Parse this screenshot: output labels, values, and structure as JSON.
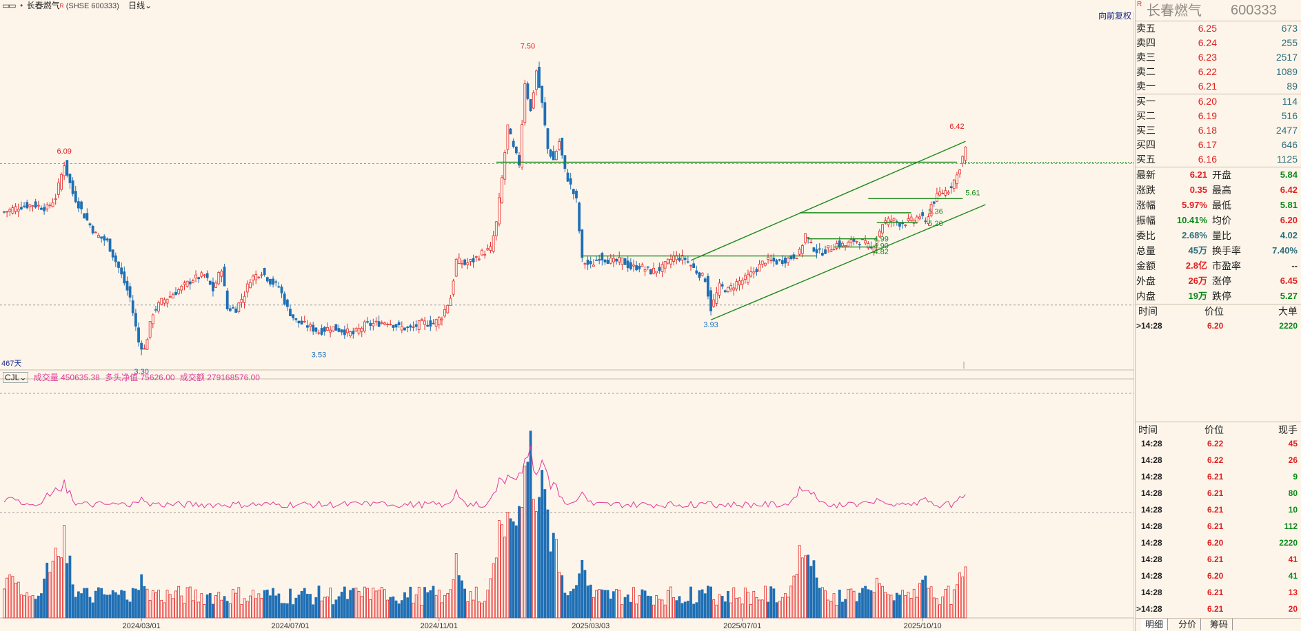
{
  "topbar": {
    "menu_icon": "grid-icon",
    "name": "长春燃气",
    "r_mark": "R",
    "market_code": "(SHSE 600333)",
    "period": "日线"
  },
  "chart_data": {
    "type": "candlestick",
    "x_ticks": [
      "2024/03/01",
      "2024/07/01",
      "2024/11/01",
      "2025/03/03",
      "2025/07/01",
      "2025/10/10"
    ],
    "price_range": [
      3.2,
      7.7
    ],
    "restore_mode": "向前复权",
    "day_count": "467天",
    "price_annotations": [
      {
        "label": "7.50",
        "i": 183,
        "v": 7.5,
        "side": "high"
      },
      {
        "label": "6.09",
        "i": 21,
        "v": 6.09,
        "side": "high"
      },
      {
        "label": "3.30",
        "i": 48,
        "v": 3.3,
        "side": "low"
      },
      {
        "label": "3.53",
        "i": 110,
        "v": 3.53,
        "side": "low"
      },
      {
        "label": "3.93",
        "i": 247,
        "v": 3.93,
        "side": "low"
      },
      {
        "label": "6.42",
        "i": 333,
        "v": 6.42,
        "side": "high"
      }
    ],
    "line_annotations": [
      {
        "label": "5.61",
        "i": 335,
        "v": 5.61
      },
      {
        "label": "5.36",
        "i": 322,
        "v": 5.36
      },
      {
        "label": "5.20",
        "i": 322,
        "v": 5.2
      },
      {
        "label": "4.99",
        "i": 303,
        "v": 4.99
      },
      {
        "label": "4.90",
        "i": 303,
        "v": 4.9
      },
      {
        "label": "4.82",
        "i": 303,
        "v": 4.82
      }
    ],
    "trend_lines": [
      {
        "i1": 172,
        "v1": 6.02,
        "i2": 333,
        "v2": 6.02
      },
      {
        "i1": 202,
        "v1": 4.76,
        "i2": 284,
        "v2": 4.76
      },
      {
        "i1": 278,
        "v1": 5.34,
        "i2": 317,
        "v2": 5.34
      },
      {
        "i1": 302,
        "v1": 5.53,
        "i2": 335,
        "v2": 5.53
      },
      {
        "i1": 305,
        "v1": 5.21,
        "i2": 319,
        "v2": 5.21
      },
      {
        "i1": 281,
        "v1": 4.99,
        "i2": 305,
        "v2": 4.99
      },
      {
        "i1": 290,
        "v1": 4.88,
        "i2": 305,
        "v2": 4.88
      },
      {
        "i1": 240,
        "v1": 4.7,
        "i2": 336,
        "v2": 6.3
      },
      {
        "i1": 247,
        "v1": 3.9,
        "i2": 343,
        "v2": 5.45
      }
    ],
    "anchors": [
      [
        0,
        5.35
      ],
      [
        5,
        5.42
      ],
      [
        10,
        5.45
      ],
      [
        15,
        5.4
      ],
      [
        18,
        5.55
      ],
      [
        21,
        6.0
      ],
      [
        24,
        5.6
      ],
      [
        28,
        5.3
      ],
      [
        32,
        5.05
      ],
      [
        36,
        4.95
      ],
      [
        40,
        4.6
      ],
      [
        44,
        4.2
      ],
      [
        47,
        3.6
      ],
      [
        49,
        3.5
      ],
      [
        52,
        4.0
      ],
      [
        55,
        4.15
      ],
      [
        58,
        4.22
      ],
      [
        62,
        4.33
      ],
      [
        66,
        4.45
      ],
      [
        70,
        4.5
      ],
      [
        73,
        4.3
      ],
      [
        76,
        4.6
      ],
      [
        78,
        4.05
      ],
      [
        81,
        4.05
      ],
      [
        84,
        4.25
      ],
      [
        86,
        4.45
      ],
      [
        90,
        4.55
      ],
      [
        93,
        4.42
      ],
      [
        96,
        4.35
      ],
      [
        99,
        4.05
      ],
      [
        102,
        3.88
      ],
      [
        106,
        3.82
      ],
      [
        110,
        3.74
      ],
      [
        114,
        3.8
      ],
      [
        118,
        3.76
      ],
      [
        122,
        3.71
      ],
      [
        126,
        3.83
      ],
      [
        130,
        3.85
      ],
      [
        134,
        3.88
      ],
      [
        138,
        3.8
      ],
      [
        142,
        3.78
      ],
      [
        146,
        3.86
      ],
      [
        150,
        3.85
      ],
      [
        153,
        3.95
      ],
      [
        156,
        4.2
      ],
      [
        158,
        4.7
      ],
      [
        161,
        4.65
      ],
      [
        164,
        4.7
      ],
      [
        167,
        4.8
      ],
      [
        170,
        4.85
      ],
      [
        172,
        5.2
      ],
      [
        174,
        5.8
      ],
      [
        176,
        6.5
      ],
      [
        178,
        6.2
      ],
      [
        180,
        6.0
      ],
      [
        182,
        7.1
      ],
      [
        184,
        6.7
      ],
      [
        186,
        7.25
      ],
      [
        188,
        6.8
      ],
      [
        190,
        6.2
      ],
      [
        192,
        6.05
      ],
      [
        194,
        6.3
      ],
      [
        196,
        5.9
      ],
      [
        198,
        5.7
      ],
      [
        200,
        5.5
      ],
      [
        202,
        4.7
      ],
      [
        205,
        4.62
      ],
      [
        208,
        4.75
      ],
      [
        210,
        4.72
      ],
      [
        213,
        4.68
      ],
      [
        216,
        4.7
      ],
      [
        219,
        4.6
      ],
      [
        222,
        4.62
      ],
      [
        226,
        4.55
      ],
      [
        230,
        4.6
      ],
      [
        234,
        4.75
      ],
      [
        238,
        4.72
      ],
      [
        242,
        4.55
      ],
      [
        245,
        4.45
      ],
      [
        247,
        4.05
      ],
      [
        250,
        4.35
      ],
      [
        253,
        4.3
      ],
      [
        256,
        4.4
      ],
      [
        259,
        4.45
      ],
      [
        262,
        4.55
      ],
      [
        266,
        4.7
      ],
      [
        270,
        4.68
      ],
      [
        274,
        4.72
      ],
      [
        278,
        4.8
      ],
      [
        280,
        5.05
      ],
      [
        282,
        4.9
      ],
      [
        285,
        4.8
      ],
      [
        288,
        4.85
      ],
      [
        291,
        4.92
      ],
      [
        294,
        4.9
      ],
      [
        297,
        4.97
      ],
      [
        300,
        4.95
      ],
      [
        303,
        4.85
      ],
      [
        305,
        5.0
      ],
      [
        307,
        5.2
      ],
      [
        310,
        5.25
      ],
      [
        313,
        5.2
      ],
      [
        316,
        5.22
      ],
      [
        318,
        5.25
      ],
      [
        320,
        5.3
      ],
      [
        322,
        5.2
      ],
      [
        324,
        5.45
      ],
      [
        327,
        5.6
      ],
      [
        330,
        5.65
      ],
      [
        333,
        5.84
      ],
      [
        336,
        6.21
      ]
    ],
    "volume_series": {
      "CJL": "成交量 450635.38",
      "multi_net": "多头净值 75626.00",
      "amount": "成交额 279168576.00"
    },
    "volume_peaks": [
      {
        "i": 3,
        "v": 55
      },
      {
        "i": 17,
        "v": 72
      },
      {
        "i": 21,
        "v": 80
      },
      {
        "i": 48,
        "v": 40
      },
      {
        "i": 130,
        "v": 20
      },
      {
        "i": 158,
        "v": 55
      },
      {
        "i": 174,
        "v": 115
      },
      {
        "i": 177,
        "v": 120
      },
      {
        "i": 182,
        "v": 160
      },
      {
        "i": 184,
        "v": 178
      },
      {
        "i": 188,
        "v": 140
      },
      {
        "i": 192,
        "v": 90
      },
      {
        "i": 202,
        "v": 60
      },
      {
        "i": 244,
        "v": 28
      },
      {
        "i": 279,
        "v": 80
      },
      {
        "i": 281,
        "v": 82
      },
      {
        "i": 296,
        "v": 30
      },
      {
        "i": 305,
        "v": 38
      },
      {
        "i": 322,
        "v": 45
      },
      {
        "i": 336,
        "v": 60
      }
    ]
  },
  "right_panel": {
    "r_mark": "R",
    "name": "长春燃气",
    "code": "600333",
    "asks": [
      {
        "label": "卖五",
        "price": "6.25",
        "vol": "673"
      },
      {
        "label": "卖四",
        "price": "6.24",
        "vol": "255"
      },
      {
        "label": "卖三",
        "price": "6.23",
        "vol": "2517"
      },
      {
        "label": "卖二",
        "price": "6.22",
        "vol": "1089"
      },
      {
        "label": "卖一",
        "price": "6.21",
        "vol": "89"
      }
    ],
    "bids": [
      {
        "label": "买一",
        "price": "6.20",
        "vol": "114"
      },
      {
        "label": "买二",
        "price": "6.19",
        "vol": "516"
      },
      {
        "label": "买三",
        "price": "6.18",
        "vol": "2477"
      },
      {
        "label": "买四",
        "price": "6.17",
        "vol": "646"
      },
      {
        "label": "买五",
        "price": "6.16",
        "vol": "1125"
      }
    ],
    "quote": [
      {
        "l1": "最新",
        "v1": "6.21",
        "c1": "red",
        "l2": "开盘",
        "v2": "5.84",
        "c2": "green"
      },
      {
        "l1": "涨跌",
        "v1": "0.35",
        "c1": "red",
        "l2": "最高",
        "v2": "6.42",
        "c2": "red"
      },
      {
        "l1": "涨幅",
        "v1": "5.97%",
        "c1": "red",
        "l2": "最低",
        "v2": "5.81",
        "c2": "green"
      },
      {
        "l1": "振幅",
        "v1": "10.41%",
        "c1": "green",
        "l2": "均价",
        "v2": "6.20",
        "c2": "red"
      },
      {
        "l1": "委比",
        "v1": "2.68%",
        "c1": "teal",
        "l2": "量比",
        "v2": "4.02",
        "c2": "teal"
      },
      {
        "l1": "总量",
        "v1": "45万",
        "c1": "teal",
        "l2": "换手率",
        "v2": "7.40%",
        "c2": "teal"
      },
      {
        "l1": "金额",
        "v1": "2.8亿",
        "c1": "red",
        "l2": "市盈率",
        "v2": "--",
        "c2": "dark"
      },
      {
        "l1": "外盘",
        "v1": "26万",
        "c1": "red",
        "l2": "涨停",
        "v2": "6.45",
        "c2": "red"
      },
      {
        "l1": "内盘",
        "v1": "19万",
        "c1": "green",
        "l2": "跌停",
        "v2": "5.27",
        "c2": "green"
      }
    ],
    "big_header": {
      "time": "时间",
      "price": "价位",
      "big": "大单"
    },
    "big_row": {
      "marker": ">",
      "time": "14:28",
      "price": "6.20",
      "vol": "2220"
    },
    "tick_header": {
      "time": "时间",
      "price": "价位",
      "vol": "现手"
    },
    "ticks": [
      {
        "time": "14:28",
        "price": "6.22",
        "vol": "45",
        "c": "red"
      },
      {
        "time": "14:28",
        "price": "6.22",
        "vol": "26",
        "c": "red"
      },
      {
        "time": "14:28",
        "price": "6.21",
        "vol": "9",
        "c": "green"
      },
      {
        "time": "14:28",
        "price": "6.21",
        "vol": "80",
        "c": "green"
      },
      {
        "time": "14:28",
        "price": "6.21",
        "vol": "10",
        "c": "green"
      },
      {
        "time": "14:28",
        "price": "6.21",
        "vol": "112",
        "c": "green"
      },
      {
        "time": "14:28",
        "price": "6.20",
        "vol": "2220",
        "c": "green"
      },
      {
        "time": "14:28",
        "price": "6.21",
        "vol": "41",
        "c": "red"
      },
      {
        "time": "14:28",
        "price": "6.20",
        "vol": "41",
        "c": "green"
      },
      {
        "time": "14:28",
        "price": "6.21",
        "vol": "13",
        "c": "red"
      },
      {
        "time": "14:28",
        "price": "6.21",
        "vol": "20",
        "c": "red",
        "marker": ">"
      }
    ],
    "tabs": [
      "明细",
      "分价",
      "筹码"
    ]
  }
}
